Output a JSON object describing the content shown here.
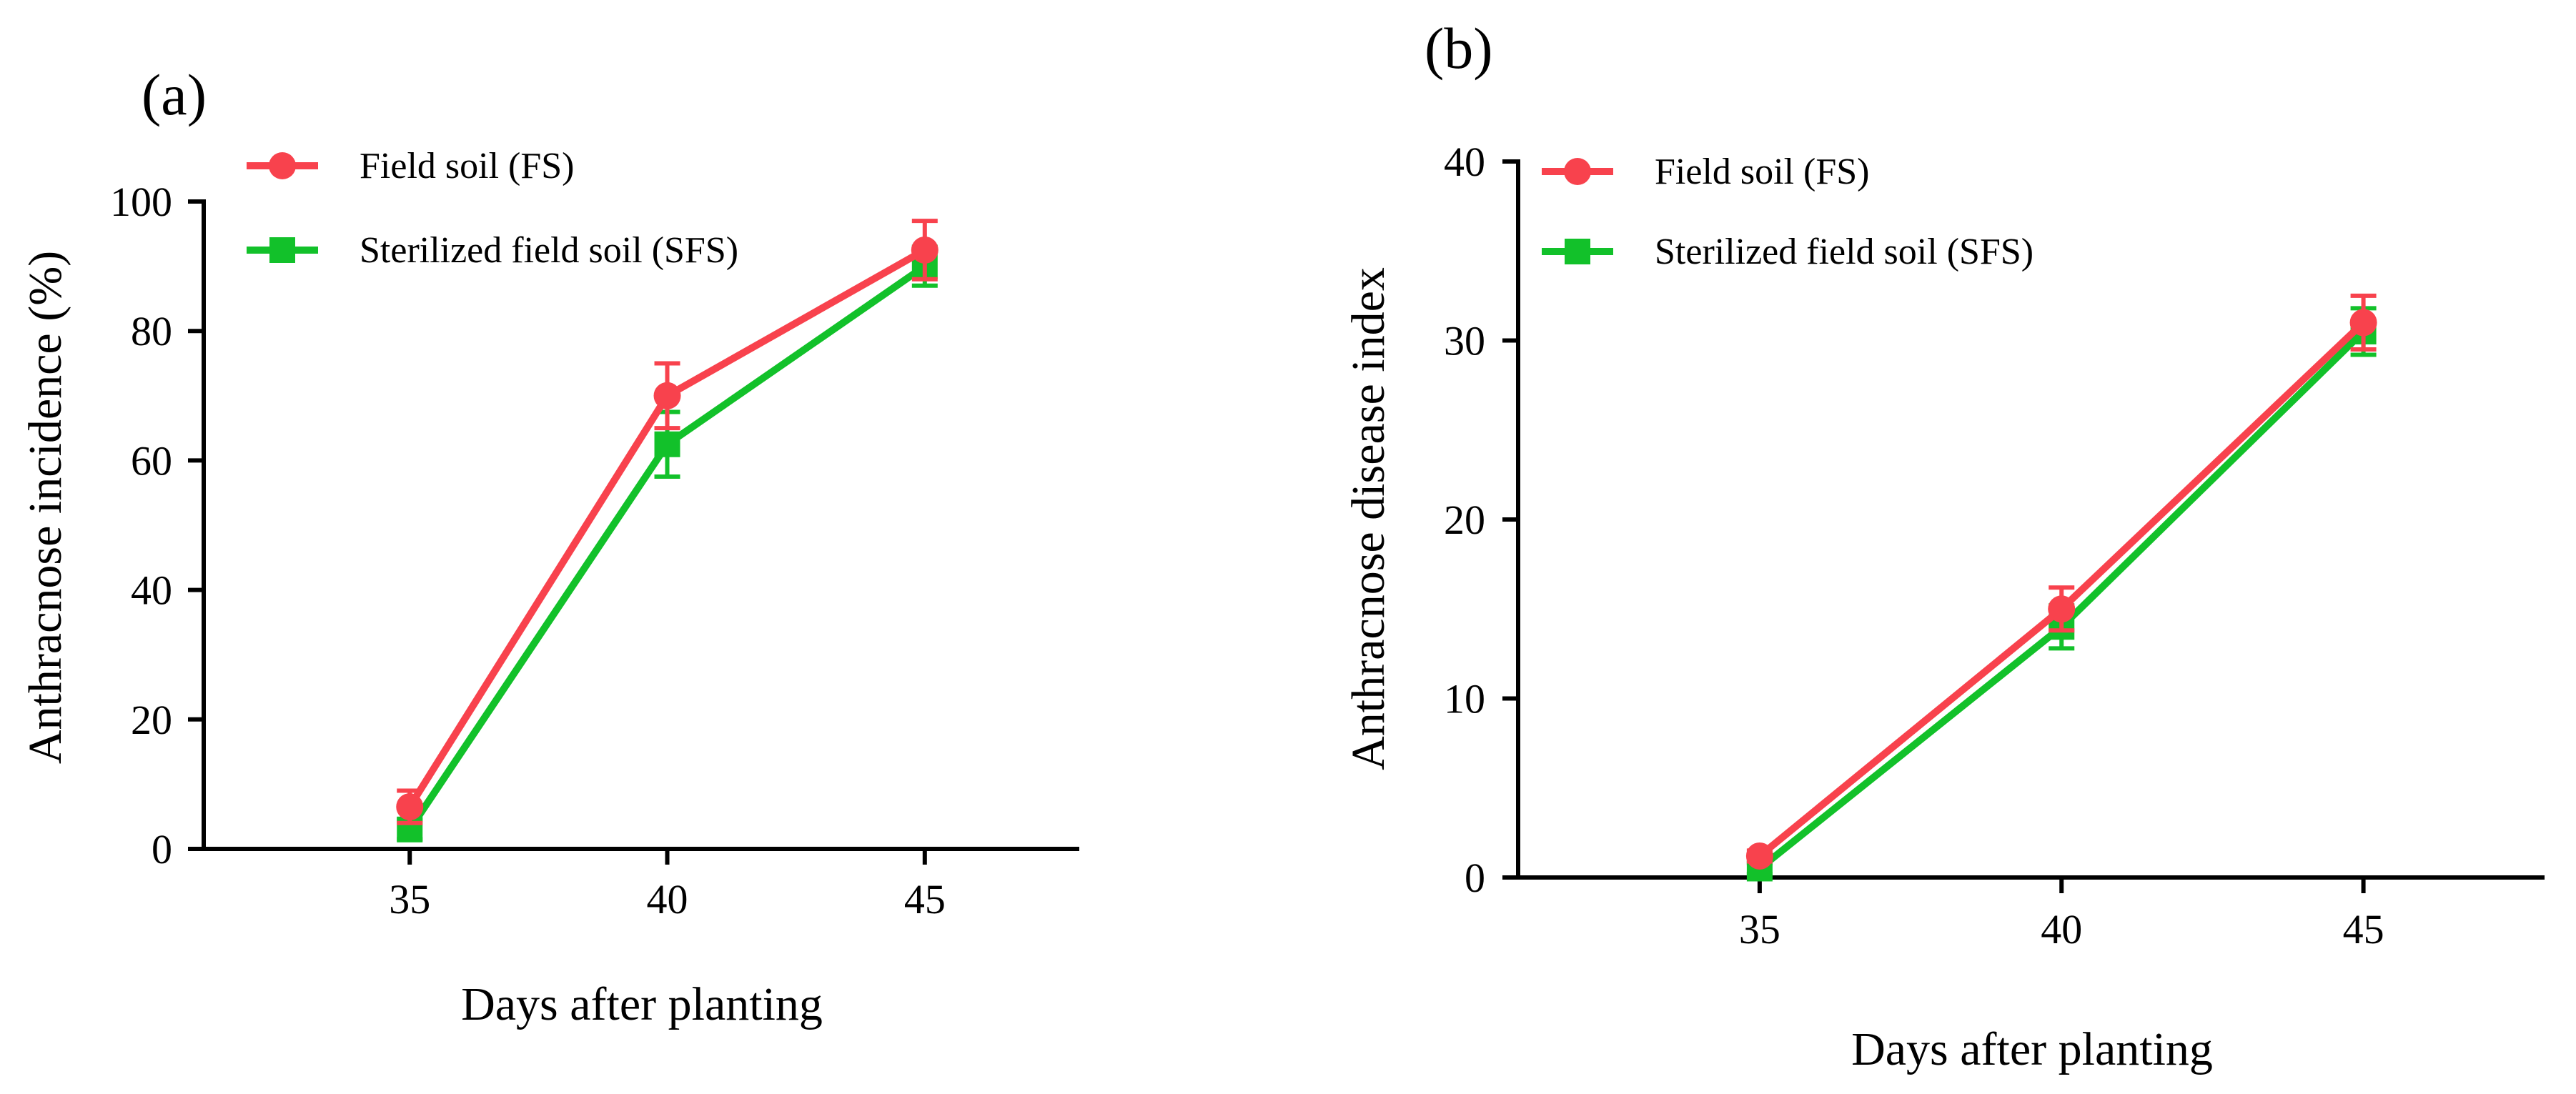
{
  "chart_data": [
    {
      "type": "line",
      "panel_label": "(a)",
      "xlabel": "Days after planting",
      "ylabel": "Anthracnose incidence (%)",
      "categories": [
        "35",
        "40",
        "45"
      ],
      "xlim": [
        31,
        48
      ],
      "ylim": [
        0,
        100
      ],
      "yticks": [
        "0",
        "20",
        "40",
        "60",
        "80",
        "100"
      ],
      "legend_position": "top-left",
      "series": [
        {
          "name": "Field soil (FS)",
          "marker": "circle",
          "color": "#F8424D",
          "x": [
            35,
            40,
            45
          ],
          "values": [
            6.5,
            70,
            92.5
          ],
          "errors": [
            2.5,
            5,
            4.5
          ]
        },
        {
          "name": "Sterilized field soil (SFS)",
          "marker": "square",
          "color": "#12C12A",
          "x": [
            35,
            40,
            45
          ],
          "values": [
            3,
            62.5,
            90
          ],
          "errors": [
            1.5,
            5,
            3
          ]
        }
      ]
    },
    {
      "type": "line",
      "panel_label": "(b)",
      "xlabel": "Days after planting",
      "ylabel": "Anthracnose disease index",
      "categories": [
        "35",
        "40",
        "45"
      ],
      "xlim": [
        31,
        48
      ],
      "ylim": [
        0,
        40
      ],
      "yticks": [
        "0",
        "10",
        "20",
        "30",
        "40"
      ],
      "legend_position": "top-left",
      "series": [
        {
          "name": "Field soil (FS)",
          "marker": "circle",
          "color": "#F8424D",
          "x": [
            35,
            40,
            45
          ],
          "values": [
            1.2,
            15,
            31
          ],
          "errors": [
            0.3,
            1.2,
            1.5
          ]
        },
        {
          "name": "Sterilized field soil (SFS)",
          "marker": "square",
          "color": "#12C12A",
          "x": [
            35,
            40,
            45
          ],
          "values": [
            0.5,
            14,
            30.5
          ],
          "errors": [
            0.3,
            1.2,
            1.3
          ]
        }
      ]
    }
  ]
}
